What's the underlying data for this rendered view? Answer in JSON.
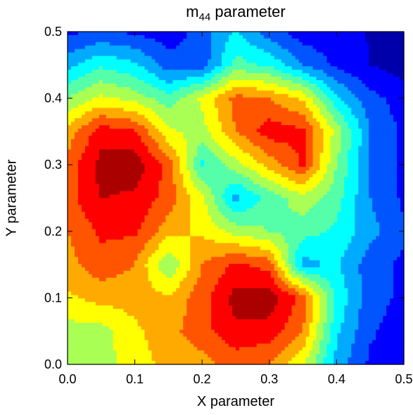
{
  "chart_data": {
    "type": "heatmap",
    "style": "filled-contour",
    "title": {
      "base": "m",
      "subscript": "44",
      "suffix": " parameter"
    },
    "xlabel": "X parameter",
    "ylabel": "Y parameter",
    "xlim": [
      0.0,
      0.5
    ],
    "ylim": [
      0.0,
      0.5
    ],
    "x_ticks": [
      "0.0",
      "0.1",
      "0.2",
      "0.3",
      "0.4",
      "0.5"
    ],
    "y_ticks": [
      "0.0",
      "0.1",
      "0.2",
      "0.3",
      "0.4",
      "0.5"
    ],
    "colormap": "jet",
    "grid_x": [
      0.0,
      0.05,
      0.1,
      0.15,
      0.2,
      0.25,
      0.3,
      0.35,
      0.4,
      0.45,
      0.5
    ],
    "grid_y": [
      0.0,
      0.05,
      0.1,
      0.15,
      0.2,
      0.25,
      0.3,
      0.35,
      0.4,
      0.45,
      0.5
    ],
    "z_levels": 12,
    "z_rows_bottom_to_top": [
      [
        0.5,
        0.55,
        0.62,
        0.7,
        0.72,
        0.78,
        0.75,
        0.6,
        0.3,
        0.15,
        0.1
      ],
      [
        0.55,
        0.55,
        0.65,
        0.72,
        0.8,
        0.9,
        0.88,
        0.75,
        0.35,
        0.18,
        0.12
      ],
      [
        0.65,
        0.7,
        0.7,
        0.68,
        0.8,
        0.95,
        0.97,
        0.8,
        0.4,
        0.2,
        0.15
      ],
      [
        0.72,
        0.8,
        0.75,
        0.5,
        0.75,
        0.85,
        0.8,
        0.3,
        0.35,
        0.2,
        0.15
      ],
      [
        0.75,
        0.85,
        0.85,
        0.7,
        0.65,
        0.55,
        0.5,
        0.45,
        0.4,
        0.28,
        0.18
      ],
      [
        0.8,
        0.92,
        0.9,
        0.8,
        0.6,
        0.3,
        0.45,
        0.55,
        0.45,
        0.25,
        0.15
      ],
      [
        0.78,
        0.95,
        0.97,
        0.8,
        0.4,
        0.55,
        0.7,
        0.85,
        0.5,
        0.25,
        0.15
      ],
      [
        0.7,
        0.88,
        0.85,
        0.6,
        0.55,
        0.75,
        0.88,
        0.85,
        0.55,
        0.25,
        0.15
      ],
      [
        0.5,
        0.6,
        0.55,
        0.45,
        0.6,
        0.78,
        0.75,
        0.65,
        0.35,
        0.2,
        0.12
      ],
      [
        0.3,
        0.4,
        0.35,
        0.2,
        0.2,
        0.45,
        0.4,
        0.25,
        0.15,
        0.08,
        0.05
      ],
      [
        0.15,
        0.18,
        0.15,
        0.12,
        0.2,
        0.35,
        0.2,
        0.12,
        0.1,
        0.08,
        0.05
      ]
    ]
  }
}
